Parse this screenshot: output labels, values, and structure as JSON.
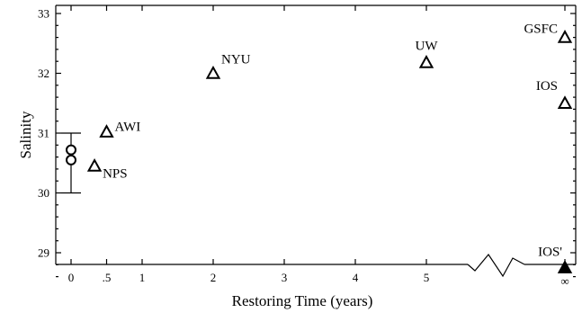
{
  "chart_data": {
    "type": "scatter",
    "xlabel": "Restoring Time (years)",
    "ylabel": "Salinity",
    "ylim": [
      28.5,
      33
    ],
    "x_ticks": [
      {
        "value": 0,
        "label": "0"
      },
      {
        "value": 0.5,
        "label": ".5"
      },
      {
        "value": 1,
        "label": "1"
      },
      {
        "value": 2,
        "label": "2"
      },
      {
        "value": 3,
        "label": "3"
      },
      {
        "value": 4,
        "label": "4"
      },
      {
        "value": 5,
        "label": "5"
      },
      {
        "value": "inf",
        "label": "∞"
      }
    ],
    "y_ticks": [
      29,
      30,
      31,
      32,
      33
    ],
    "x_axis_break": {
      "between": [
        5,
        "inf"
      ],
      "style": "zigzag"
    },
    "observations": {
      "marker": "open-circle",
      "x": 0,
      "values": [
        30.55,
        30.72
      ],
      "error_bar": [
        30.0,
        31.0
      ]
    },
    "points": [
      {
        "label": "NPS",
        "x": 0.33,
        "y": 30.45,
        "marker": "open-triangle"
      },
      {
        "label": "AWI",
        "x": 0.5,
        "y": 31.02,
        "marker": "open-triangle"
      },
      {
        "label": "NYU",
        "x": 2,
        "y": 32.0,
        "marker": "open-triangle"
      },
      {
        "label": "UW",
        "x": 5,
        "y": 32.18,
        "marker": "open-triangle"
      },
      {
        "label": "GSFC",
        "x": "inf",
        "y": 32.6,
        "marker": "open-triangle"
      },
      {
        "label": "IOS",
        "x": "inf",
        "y": 31.5,
        "marker": "open-triangle"
      },
      {
        "label": "IOS'",
        "x": "inf",
        "y": 28.75,
        "marker": "filled-triangle"
      }
    ]
  }
}
